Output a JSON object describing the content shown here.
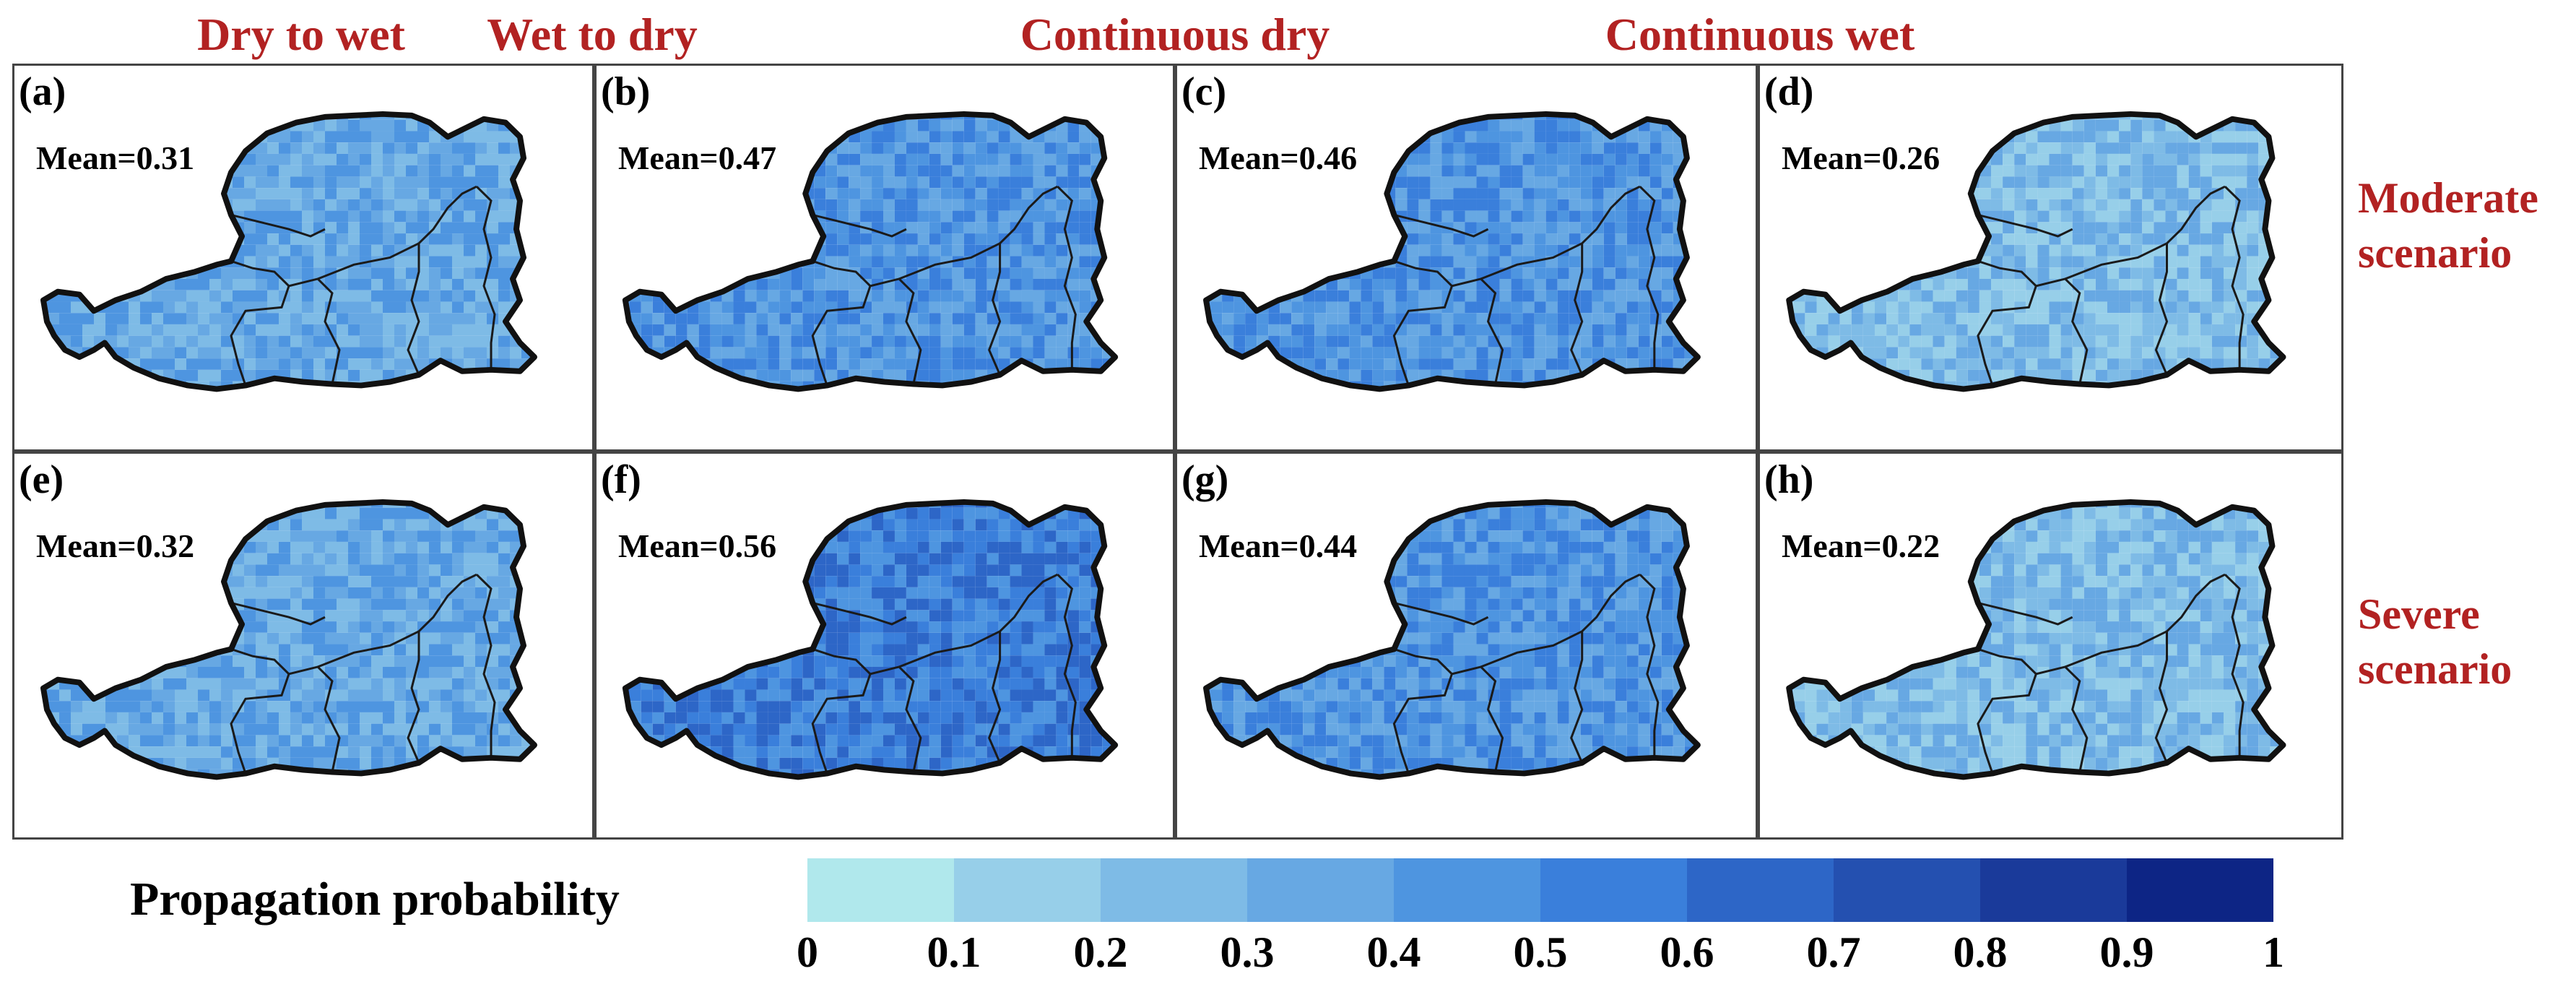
{
  "columns": [
    "Dry to wet",
    "Wet to dry",
    "Continuous dry",
    "Continuous wet"
  ],
  "rows": [
    "Moderate\nscenario",
    "Severe\nscenario"
  ],
  "panels": [
    {
      "letter": "(a)",
      "mean": "Mean=0.31"
    },
    {
      "letter": "(b)",
      "mean": "Mean=0.47"
    },
    {
      "letter": "(c)",
      "mean": "Mean=0.46"
    },
    {
      "letter": "(d)",
      "mean": "Mean=0.26"
    },
    {
      "letter": "(e)",
      "mean": "Mean=0.32"
    },
    {
      "letter": "(f)",
      "mean": "Mean=0.56"
    },
    {
      "letter": "(g)",
      "mean": "Mean=0.44"
    },
    {
      "letter": "(h)",
      "mean": "Mean=0.22"
    }
  ],
  "legend": {
    "title": "Propagation probability",
    "ticks": [
      "0",
      "0.1",
      "0.2",
      "0.3",
      "0.4",
      "0.5",
      "0.6",
      "0.7",
      "0.8",
      "0.9",
      "1"
    ],
    "colors": [
      "#b0e8ec",
      "#97cfe9",
      "#7ebbe6",
      "#67a8e3",
      "#4e95e0",
      "#3a7fdb",
      "#2d66c7",
      "#2450b0",
      "#1a3a9a",
      "#0d2585"
    ]
  }
}
